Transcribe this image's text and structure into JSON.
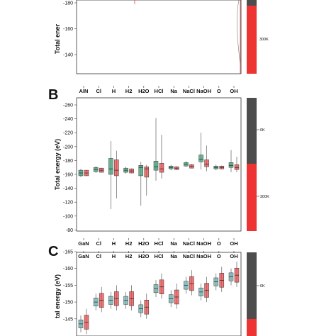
{
  "colors": {
    "cold": "#3d9e74",
    "hot": "#e84848",
    "bar_dark": "#4d4d4d",
    "bar_red": "#ee3333"
  },
  "chart_data": [
    {
      "panel": "A",
      "type": "box",
      "ylabel": "Total energy (eV)",
      "ylabel_visible": "Total ener",
      "yticks": [
        -180,
        -160,
        -140
      ],
      "y_axis_inverted": true,
      "categories": [
        "AlN",
        "Cl",
        "H",
        "H2",
        "H2O",
        "HCl",
        "Na",
        "NaCl",
        "NaOH",
        "O",
        "OH"
      ],
      "legend": [
        "300K"
      ],
      "series": []
    },
    {
      "panel": "B",
      "type": "box",
      "ylabel": "Total energy (eV)",
      "ylim": [
        -265,
        -80
      ],
      "yticks": [
        -260,
        -240,
        -220,
        -200,
        -180,
        -160,
        -140,
        -120,
        -100,
        -80
      ],
      "y_axis_inverted": true,
      "categories": [
        "GaN",
        "Cl",
        "H",
        "H2",
        "H2O",
        "HCl",
        "Na",
        "NaCl",
        "NaOH",
        "O",
        "OH"
      ],
      "legend": [
        "0K",
        "300K"
      ],
      "series": [
        {
          "name": "0K",
          "median": [
            -162,
            -167,
            -168,
            -166,
            -170,
            -171,
            -170,
            -175,
            -182,
            -170,
            -173
          ]
        },
        {
          "name": "300K",
          "median": [
            -162,
            -166,
            -166,
            -165,
            -168,
            -168,
            -169,
            -172,
            -175,
            -170,
            -170
          ]
        }
      ]
    },
    {
      "panel": "C",
      "type": "box",
      "ylabel": "Total energy (eV)",
      "ylabel_visible": "tal energy (eV)",
      "yticks": [
        -165,
        -160,
        -155,
        -150,
        -145
      ],
      "y_axis_inverted": true,
      "categories": [
        "GaN",
        "Cl",
        "H",
        "H2",
        "H2O",
        "HCl",
        "Na",
        "NaCl",
        "NaOH",
        "O",
        "OH"
      ],
      "legend": [
        "0K"
      ],
      "series": []
    }
  ],
  "panelB_tick_labels": [
    "-260",
    "-240",
    "-220",
    "-200",
    "-180",
    "-160",
    "-140",
    "-120",
    "-100",
    "-80"
  ],
  "panelC_tick_labels": [
    "-165",
    "-160",
    "-155",
    "-150",
    "-145"
  ],
  "panelA_tick_labels": [
    "-180",
    "-160",
    "-140"
  ],
  "text": {
    "label_b": "B",
    "label_c": "C",
    "ylabel_a": "Total ener",
    "ylabel_b": "Total energy (eV)",
    "ylabel_c": "tal energy (eV)",
    "side_a": "300K",
    "side_b_top": "0K",
    "side_b_bottom": "300K",
    "side_c": "0K"
  }
}
